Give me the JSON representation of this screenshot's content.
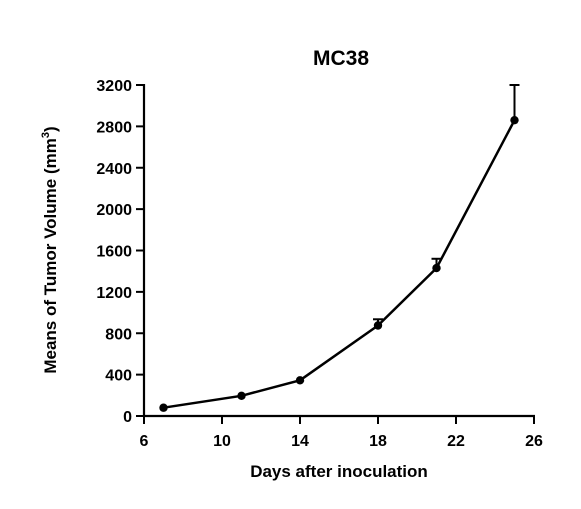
{
  "chart_data": {
    "type": "line",
    "title": "MC38",
    "xlabel": "Days after inoculation",
    "ylabel_prefix": "Means of Tumor Volume (mm",
    "ylabel_exp": "3",
    "ylabel_suffix": ")",
    "xlim": [
      6,
      26
    ],
    "ylim": [
      0,
      3200
    ],
    "xticks": [
      "6",
      "10",
      "14",
      "18",
      "22",
      "26"
    ],
    "yticks": [
      "0",
      "400",
      "800",
      "1200",
      "1600",
      "2000",
      "2400",
      "2800",
      "3200"
    ],
    "grid": false,
    "series": [
      {
        "x": [
          7,
          11,
          14,
          18,
          21,
          25
        ],
        "y": [
          80,
          195,
          345,
          875,
          1430,
          2860
        ],
        "error_upper": [
          0,
          0,
          0,
          60,
          90,
          340
        ]
      }
    ]
  }
}
